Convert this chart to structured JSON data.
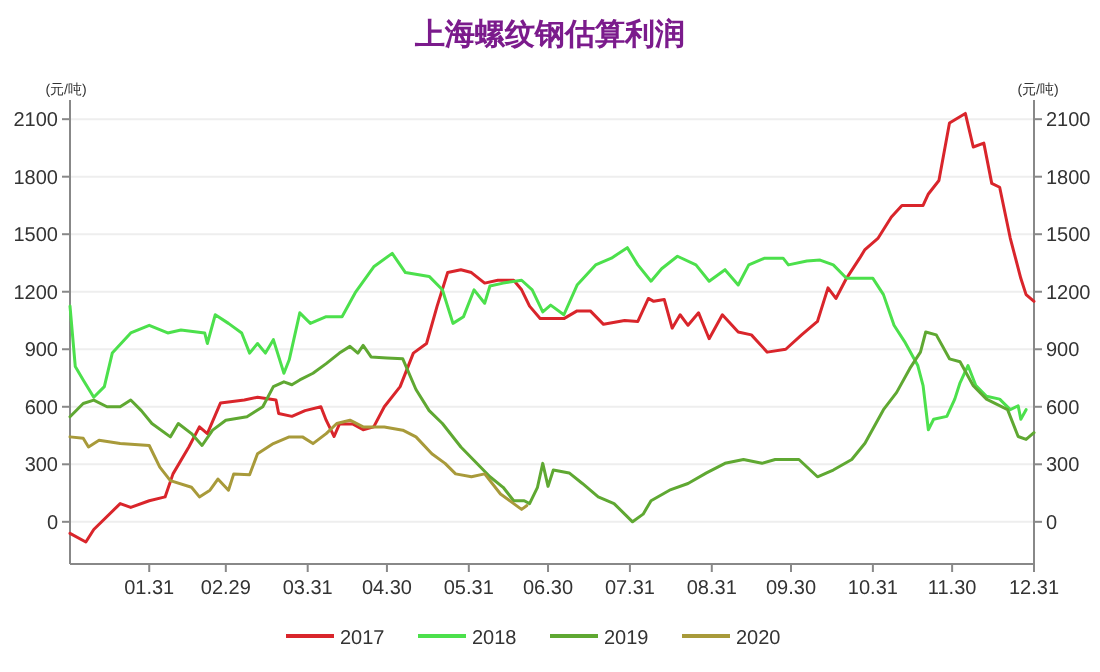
{
  "chart_data": {
    "type": "line",
    "title": "上海螺纹钢估算利润",
    "ylabel": "(元/吨)",
    "y2label": "(元/吨)",
    "xlim": [
      "--01-01",
      "--12-31"
    ],
    "xticks": [
      {
        "value": "--01-31",
        "label": "01.31"
      },
      {
        "value": "--02-29",
        "label": "02.29"
      },
      {
        "value": "--03-31",
        "label": "03.31"
      },
      {
        "value": "--04-30",
        "label": "04.30"
      },
      {
        "value": "--05-31",
        "label": "05.31"
      },
      {
        "value": "--06-30",
        "label": "06.30"
      },
      {
        "value": "--07-31",
        "label": "07.31"
      },
      {
        "value": "--08-31",
        "label": "08.31"
      },
      {
        "value": "--09-30",
        "label": "09.30"
      },
      {
        "value": "--10-31",
        "label": "10.31"
      },
      {
        "value": "--11-30",
        "label": "11.30"
      },
      {
        "value": "--12-31",
        "label": "12.31"
      }
    ],
    "ylim": [
      -220,
      2200
    ],
    "yticks": [
      0,
      300,
      600,
      900,
      1200,
      1500,
      1800,
      2100
    ],
    "y2lim": [
      -220,
      2200
    ],
    "y2ticks": [
      0,
      300,
      600,
      900,
      1200,
      1500,
      1800,
      2100
    ],
    "grid": "y",
    "legend": "bottom",
    "series": [
      {
        "name": "2017",
        "color": "#d9252b",
        "x": [
          "--01-01",
          "--01-07",
          "--01-10",
          "--01-20",
          "--01-24",
          "--01-31",
          "--02-06",
          "--02-09",
          "--02-15",
          "--02-19",
          "--02-22",
          "--02-27",
          "--03-07",
          "--03-12",
          "--03-19",
          "--03-20",
          "--03-25",
          "--03-30",
          "--04-05",
          "--04-07",
          "--04-10",
          "--04-12",
          "--04-17",
          "--04-21",
          "--04-25",
          "--04-29",
          "--05-05",
          "--05-10",
          "--05-15",
          "--05-19",
          "--05-23",
          "--05-28",
          "--06-01",
          "--06-06",
          "--06-11",
          "--06-17",
          "--06-20",
          "--06-23",
          "--06-27",
          "--07-06",
          "--07-11",
          "--07-16",
          "--07-21",
          "--07-29",
          "--08-03",
          "--08-07",
          "--08-09",
          "--08-13",
          "--08-16",
          "--08-19",
          "--08-22",
          "--08-26",
          "--08-30",
          "--09-04",
          "--09-10",
          "--09-15",
          "--09-21",
          "--09-28",
          "--10-04",
          "--10-10",
          "--10-14",
          "--10-17",
          "--10-21",
          "--10-26",
          "--10-28",
          "--11-02",
          "--11-07",
          "--11-11",
          "--11-19",
          "--11-21",
          "--11-25",
          "--11-29",
          "--12-05",
          "--12-08",
          "--12-12",
          "--12-15",
          "--12-18",
          "--12-22",
          "--12-26",
          "--12-28",
          "--12-31"
        ],
        "values": [
          -60,
          -105,
          -40,
          95,
          75,
          110,
          130,
          250,
          390,
          495,
          460,
          620,
          635,
          650,
          635,
          565,
          550,
          580,
          600,
          530,
          445,
          510,
          510,
          480,
          495,
          600,
          705,
          880,
          930,
          1125,
          1300,
          1315,
          1300,
          1245,
          1260,
          1260,
          1210,
          1125,
          1060,
          1060,
          1100,
          1100,
          1030,
          1050,
          1045,
          1165,
          1150,
          1160,
          1010,
          1080,
          1025,
          1090,
          955,
          1080,
          990,
          975,
          885,
          900,
          975,
          1045,
          1220,
          1165,
          1270,
          1375,
          1420,
          1480,
          1590,
          1650,
          1650,
          1710,
          1780,
          2080,
          2130,
          1955,
          1975,
          1765,
          1745,
          1480,
          1270,
          1185,
          1150
        ]
      },
      {
        "name": "2018",
        "color": "#4ce04c",
        "x": [
          "--01-01",
          "--01-03",
          "--01-06",
          "--01-10",
          "--01-14",
          "--01-17",
          "--01-24",
          "--01-31",
          "--02-07",
          "--02-12",
          "--02-21",
          "--02-22",
          "--02-25",
          "--03-01",
          "--03-06",
          "--03-09",
          "--03-12",
          "--03-15",
          "--03-18",
          "--03-22",
          "--03-24",
          "--03-28",
          "--04-01",
          "--04-07",
          "--04-13",
          "--04-18",
          "--04-25",
          "--05-02",
          "--05-07",
          "--05-16",
          "--05-21",
          "--05-25",
          "--05-29",
          "--06-02",
          "--06-06",
          "--06-08",
          "--06-13",
          "--06-20",
          "--06-24",
          "--06-28",
          "--07-01",
          "--07-06",
          "--07-11",
          "--07-18",
          "--07-24",
          "--07-30",
          "--08-03",
          "--08-08",
          "--08-12",
          "--08-18",
          "--08-25",
          "--08-30",
          "--09-05",
          "--09-10",
          "--09-14",
          "--09-20",
          "--09-27",
          "--09-29",
          "--10-06",
          "--10-11",
          "--10-16",
          "--10-21",
          "--10-26",
          "--10-31",
          "--11-04",
          "--11-08",
          "--11-12",
          "--11-17",
          "--11-19",
          "--11-21",
          "--11-23",
          "--11-28",
          "--12-01",
          "--12-03",
          "--12-06",
          "--12-09",
          "--12-13",
          "--12-18",
          "--12-22",
          "--12-25",
          "--12-26",
          "--12-28"
        ],
        "values": [
          1125,
          810,
          740,
          650,
          705,
          880,
          985,
          1025,
          985,
          1000,
          985,
          930,
          1080,
          1035,
          985,
          880,
          930,
          880,
          950,
          775,
          845,
          1090,
          1035,
          1070,
          1070,
          1195,
          1330,
          1400,
          1300,
          1280,
          1210,
          1035,
          1070,
          1210,
          1140,
          1230,
          1245,
          1260,
          1210,
          1095,
          1130,
          1080,
          1235,
          1340,
          1375,
          1430,
          1340,
          1255,
          1320,
          1385,
          1340,
          1255,
          1315,
          1235,
          1340,
          1375,
          1375,
          1340,
          1360,
          1365,
          1340,
          1270,
          1270,
          1270,
          1185,
          1025,
          940,
          815,
          710,
          480,
          535,
          550,
          640,
          725,
          815,
          710,
          655,
          640,
          585,
          605,
          535,
          585
        ]
      },
      {
        "name": "2019",
        "color": "#5fa832",
        "x": [
          "--01-01",
          "--01-06",
          "--01-10",
          "--01-15",
          "--01-20",
          "--01-24",
          "--01-28",
          "--02-01",
          "--02-08",
          "--02-11",
          "--02-16",
          "--02-20",
          "--02-24",
          "--02-29",
          "--03-08",
          "--03-14",
          "--03-18",
          "--03-22",
          "--03-25",
          "--03-28",
          "--04-02",
          "--04-07",
          "--04-12",
          "--04-16",
          "--04-19",
          "--04-21",
          "--04-24",
          "--04-30",
          "--05-06",
          "--05-11",
          "--05-16",
          "--05-21",
          "--05-28",
          "--06-02",
          "--06-08",
          "--06-13",
          "--06-17",
          "--06-21",
          "--06-23",
          "--06-26",
          "--06-28",
          "--06-30",
          "--07-02",
          "--07-08",
          "--07-13",
          "--07-19",
          "--07-25",
          "--08-01",
          "--08-05",
          "--08-08",
          "--08-15",
          "--08-22",
          "--08-29",
          "--09-05",
          "--09-12",
          "--09-19",
          "--09-24",
          "--10-03",
          "--10-10",
          "--10-16",
          "--10-23",
          "--10-28",
          "--11-04",
          "--11-09",
          "--11-14",
          "--11-18",
          "--11-20",
          "--11-24",
          "--11-29",
          "--12-03",
          "--12-08",
          "--12-13",
          "--12-21",
          "--12-25",
          "--12-28",
          "--12-31"
        ],
        "values": [
          548,
          617,
          635,
          600,
          600,
          635,
          580,
          513,
          443,
          513,
          460,
          398,
          478,
          530,
          548,
          600,
          705,
          730,
          715,
          740,
          775,
          825,
          880,
          915,
          880,
          920,
          860,
          855,
          850,
          690,
          580,
          513,
          390,
          320,
          235,
          180,
          110,
          110,
          95,
          180,
          305,
          185,
          270,
          255,
          200,
          130,
          95,
          0,
          40,
          110,
          165,
          200,
          255,
          305,
          325,
          305,
          325,
          325,
          235,
          270,
          325,
          410,
          585,
          675,
          800,
          885,
          990,
          975,
          850,
          835,
          710,
          640,
          585,
          445,
          430,
          465
        ]
      },
      {
        "name": "2020",
        "color": "#a89a3a",
        "x": [
          "--01-01",
          "--01-06",
          "--01-08",
          "--01-12",
          "--01-20",
          "--01-31",
          "--02-04",
          "--02-08",
          "--02-16",
          "--02-19",
          "--02-23",
          "--02-26",
          "--03-01",
          "--03-03",
          "--03-09",
          "--03-12",
          "--03-18",
          "--03-24",
          "--03-29",
          "--04-02",
          "--04-07",
          "--04-11",
          "--04-16",
          "--04-21",
          "--04-29",
          "--05-06",
          "--05-11",
          "--05-17",
          "--05-22",
          "--05-26",
          "--06-01",
          "--06-06",
          "--06-12",
          "--06-17",
          "--06-20",
          "--06-22"
        ],
        "values": [
          443,
          436,
          390,
          425,
          408,
          398,
          285,
          215,
          180,
          130,
          165,
          223,
          165,
          250,
          245,
          355,
          408,
          443,
          443,
          408,
          460,
          513,
          530,
          495,
          495,
          478,
          443,
          355,
          305,
          250,
          235,
          250,
          145,
          95,
          65,
          85
        ]
      }
    ]
  }
}
